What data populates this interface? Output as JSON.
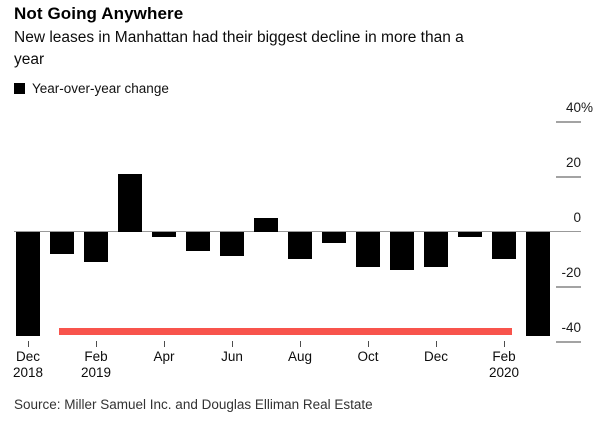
{
  "header": {
    "title": "Not Going Anywhere",
    "subtitle_line1": "New leases in Manhattan had their biggest decline in more than a",
    "subtitle_line2": "year"
  },
  "legend": {
    "label": "Year-over-year change",
    "swatch_color": "#000000"
  },
  "source": "Source: Miller Samuel Inc. and Douglas Elliman Real Estate",
  "chart_data": {
    "type": "bar",
    "title": "Not Going Anywhere",
    "subtitle": "New leases in Manhattan had their biggest decline in more than a year",
    "series_name": "Year-over-year change",
    "unit": "%",
    "x": [
      "Dec 2018",
      "Jan 2019",
      "Feb 2019",
      "Mar 2019",
      "Apr 2019",
      "May 2019",
      "Jun 2019",
      "Jul 2019",
      "Aug 2019",
      "Sep 2019",
      "Oct 2019",
      "Nov 2019",
      "Dec 2019",
      "Jan 2020",
      "Feb 2020",
      "Mar 2020"
    ],
    "values": [
      -38,
      -8,
      -11,
      21,
      -2,
      -7,
      -9,
      5,
      -10,
      -4,
      -13,
      -14,
      -13,
      -2,
      -10,
      -38
    ],
    "ylim": [
      -45,
      42
    ],
    "yticks": [
      40,
      20,
      0,
      -20,
      -40
    ],
    "ytick_labels": [
      "40%",
      "20",
      "0",
      "-20",
      "-40"
    ],
    "xticks": [
      "Dec 2018",
      "Feb 2019",
      "Apr 2019",
      "Jun 2019",
      "Aug 2019",
      "Oct 2019",
      "Dec 2019",
      "Feb 2020"
    ],
    "xtick_labels": [
      [
        "Dec",
        "2018"
      ],
      [
        "Feb",
        "2019"
      ],
      [
        "Apr"
      ],
      [
        "Jun"
      ],
      [
        "Aug"
      ],
      [
        "Oct"
      ],
      [
        "Dec"
      ],
      [
        "Feb",
        "2020"
      ]
    ],
    "bar_color": "#000000",
    "axis_color": "#999999",
    "grid": false,
    "legend_position": "top-left",
    "annotation": {
      "shape": "horizontal-line",
      "color": "#f8544c",
      "approx_y_value": -36.5,
      "span_from": "Jan 2019",
      "span_to": "Feb 2020"
    }
  }
}
